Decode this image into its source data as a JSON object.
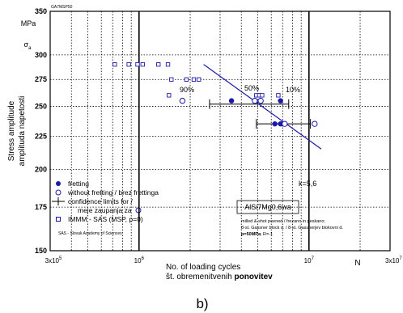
{
  "chart_data": {
    "type": "scatter",
    "x_scale": "log",
    "y_scale": "log",
    "xlim": [
      300000,
      30000000
    ],
    "ylim": [
      150,
      350
    ],
    "top_corner_label": "GA7MSP50",
    "y_unit": "MPa",
    "y_symbol": "σ",
    "y_symbol_sub": "a",
    "ylabel": "Stress amplitude",
    "ylabel_local": "amplituda napetosti",
    "xlabel": "No. of loading cycles",
    "xlabel_local": "št. obremenitvenih",
    "xlabel_local_bold": "ponovitev",
    "x_unit": "N",
    "y_ticks": [
      {
        "value": 150,
        "label": "150"
      },
      {
        "value": 175,
        "label": "175"
      },
      {
        "value": 200,
        "label": "200"
      },
      {
        "value": 225,
        "label": "225"
      },
      {
        "value": 250,
        "label": "250"
      },
      {
        "value": 275,
        "label": "275"
      },
      {
        "value": 300,
        "label": "300"
      },
      {
        "value": 350,
        "label": "350"
      }
    ],
    "x_ticks": [
      {
        "value": 300000,
        "base": "3x10",
        "exp": "5"
      },
      {
        "value": 1000000,
        "base": "10",
        "exp": "6"
      },
      {
        "value": 10000000,
        "base": "10",
        "exp": "7"
      },
      {
        "value": 30000000,
        "base": "3x10",
        "exp": "7"
      }
    ],
    "series": [
      {
        "name": "fretting",
        "marker": "filled-circle",
        "color": "#1a1aa8",
        "points": [
          [
            3500000,
            255
          ],
          [
            6800000,
            255
          ],
          [
            6300000,
            235
          ],
          [
            6800000,
            235
          ],
          [
            7000000,
            235
          ]
        ]
      },
      {
        "name": "without fretting / brez frettinga",
        "marker": "open-circle",
        "color": "#1a1aa8",
        "points": [
          [
            1800000,
            255
          ],
          [
            4800000,
            255
          ],
          [
            5200000,
            255
          ],
          [
            7200000,
            235
          ],
          [
            10800000,
            235
          ]
        ]
      },
      {
        "name": "IMMM - SAS (MSP, p=0)",
        "marker": "open-square",
        "color": "#1a1aa8",
        "points": [
          [
            720000,
            290
          ],
          [
            870000,
            290
          ],
          [
            980000,
            290
          ],
          [
            1050000,
            290
          ],
          [
            1300000,
            290
          ],
          [
            1480000,
            290
          ],
          [
            1550000,
            275
          ],
          [
            1900000,
            275
          ],
          [
            2100000,
            275
          ],
          [
            2250000,
            275
          ],
          [
            1500000,
            260
          ],
          [
            4900000,
            260
          ],
          [
            5100000,
            260
          ],
          [
            5300000,
            260
          ],
          [
            6600000,
            260
          ]
        ]
      }
    ],
    "fit_line": {
      "color": "#1a1aa8",
      "points": [
        [
          2400000,
          290
        ],
        [
          11800000,
          215
        ]
      ],
      "label": "k=5,6"
    },
    "confidence_intervals": [
      {
        "label": "90%",
        "y": 252,
        "x_low": 2600000,
        "x_high": 7600000
      },
      {
        "label": "50%",
        "y": 252,
        "x_low": null,
        "x_high": null
      },
      {
        "label": "10%",
        "y": 252,
        "x_low": null,
        "x_high": null
      },
      {
        "label": "",
        "y": 235,
        "x_low": 4900000,
        "x_high": 10200000
      }
    ],
    "legend": {
      "placement": "bottom-left",
      "entries": [
        {
          "label": "fretting",
          "marker": "filled-circle"
        },
        {
          "label": "without fretting / brez frettinga",
          "marker": "open-circle"
        },
        {
          "label": "confidence limits for /",
          "marker": "bar"
        },
        {
          "label": "meje zaupanja za",
          "marker": "open-circle-after"
        },
        {
          "label": "IMMM - SAS (MSP, p=0)",
          "marker": "open-square"
        }
      ],
      "footnote": "SAS - Slovak Academy of Sciences"
    },
    "material_label": "AlSi7Mg0,6wa",
    "process_notes": [
      "milled & shot peened / frezano in peskano;",
      "8-st. Gassner block d. / 8-st. Gassnerjev blokovni d.",
      "p=50MPa; R=-1"
    ],
    "process_bold_part": "p=50MPa",
    "process_rest_part": "; R=-1",
    "figure_label": "b)",
    "grid": true
  }
}
